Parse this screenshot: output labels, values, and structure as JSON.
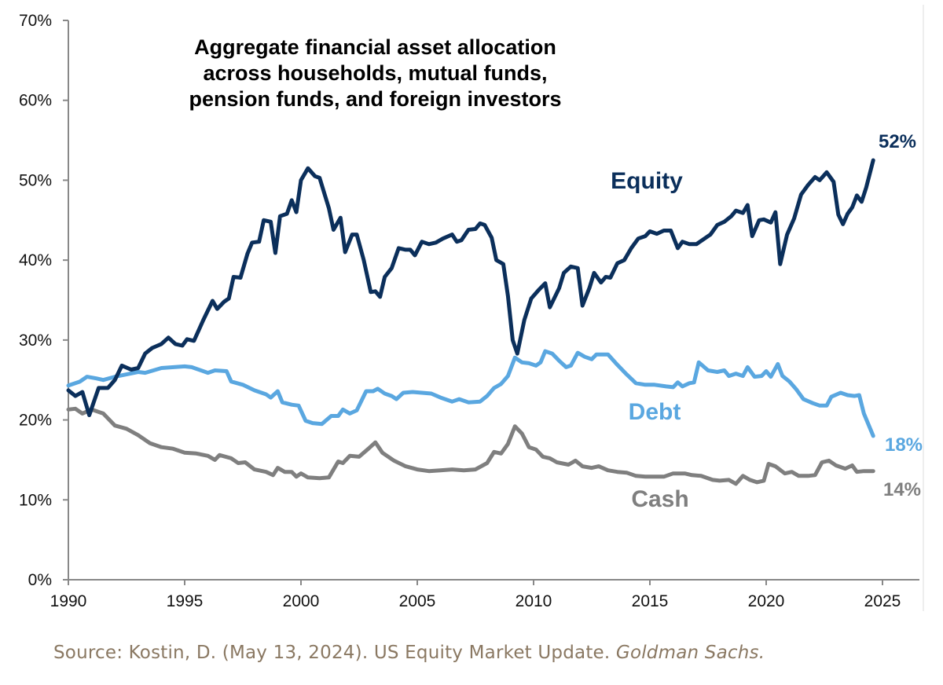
{
  "chart_data": {
    "type": "line",
    "title": "Aggregate financial asset allocation across households, mutual funds, pension funds, and foreign investors",
    "title_lines": [
      "Aggregate financial asset allocation",
      "across households, mutual funds,",
      "pension funds, and foreign investors"
    ],
    "xlabel": "",
    "ylabel": "",
    "xlim": [
      1990,
      2027
    ],
    "ylim": [
      0,
      70
    ],
    "x_ticks": [
      "1990",
      "1995",
      "2000",
      "2005",
      "2010",
      "2015",
      "2020",
      "2025"
    ],
    "y_ticks": [
      "0%",
      "10%",
      "20%",
      "30%",
      "40%",
      "50%",
      "60%",
      "70%"
    ],
    "grid": false,
    "series": [
      {
        "name": "Equity",
        "color": "#0b2f5b",
        "end_label": "52%",
        "x": [
          1990.0,
          1990.3,
          1990.6,
          1990.9,
          1991.3,
          1991.7,
          1992.0,
          1992.3,
          1992.7,
          1993.0,
          1993.3,
          1993.6,
          1994.0,
          1994.3,
          1994.6,
          1994.9,
          1995.1,
          1995.4,
          1995.8,
          1996.2,
          1996.4,
          1996.7,
          1996.9,
          1997.1,
          1997.4,
          1997.7,
          1997.9,
          1998.2,
          1998.4,
          1998.7,
          1998.9,
          1999.1,
          1999.4,
          1999.6,
          1999.8,
          2000.0,
          2000.3,
          2000.6,
          2000.8,
          2001.2,
          2001.4,
          2001.7,
          2001.9,
          2002.2,
          2002.4,
          2002.7,
          2003.0,
          2003.2,
          2003.4,
          2003.6,
          2003.9,
          2004.2,
          2004.5,
          2004.7,
          2004.9,
          2005.2,
          2005.5,
          2005.8,
          2006.1,
          2006.5,
          2006.7,
          2006.9,
          2007.2,
          2007.5,
          2007.7,
          2007.9,
          2008.2,
          2008.4,
          2008.7,
          2008.9,
          2009.1,
          2009.3,
          2009.6,
          2009.9,
          2010.2,
          2010.5,
          2010.7,
          2011.1,
          2011.3,
          2011.6,
          2011.9,
          2012.1,
          2012.4,
          2012.6,
          2012.9,
          2013.1,
          2013.3,
          2013.6,
          2013.9,
          2014.2,
          2014.5,
          2014.8,
          2015.0,
          2015.3,
          2015.6,
          2015.9,
          2016.2,
          2016.4,
          2016.7,
          2017.0,
          2017.3,
          2017.6,
          2017.9,
          2018.2,
          2018.5,
          2018.7,
          2019.0,
          2019.2,
          2019.4,
          2019.7,
          2019.9,
          2020.2,
          2020.4,
          2020.6,
          2020.9,
          2021.2,
          2021.5,
          2021.8,
          2022.1,
          2022.3,
          2022.6,
          2022.9,
          2023.1,
          2023.3,
          2023.5,
          2023.7,
          2023.9,
          2024.1,
          2024.3,
          2024.6
        ],
        "values": [
          23.7,
          23.0,
          23.5,
          20.6,
          24.0,
          24.0,
          25.0,
          26.8,
          26.3,
          26.5,
          28.3,
          29.0,
          29.5,
          30.3,
          29.5,
          29.3,
          30.1,
          29.9,
          32.5,
          34.9,
          33.9,
          34.8,
          35.2,
          37.9,
          37.8,
          40.8,
          42.2,
          42.3,
          45.0,
          44.8,
          40.9,
          45.5,
          45.8,
          47.5,
          46.0,
          50.0,
          51.5,
          50.5,
          50.3,
          46.5,
          43.8,
          45.3,
          41.0,
          43.2,
          43.2,
          40.0,
          36.0,
          36.1,
          35.4,
          37.9,
          39.0,
          41.5,
          41.3,
          41.3,
          40.6,
          42.3,
          42.0,
          42.2,
          42.7,
          43.2,
          42.3,
          42.5,
          43.8,
          43.9,
          44.6,
          44.4,
          42.8,
          40.0,
          39.5,
          35.5,
          30.0,
          28.3,
          32.5,
          35.2,
          36.2,
          37.1,
          34.1,
          36.5,
          38.4,
          39.2,
          39.0,
          34.3,
          36.5,
          38.4,
          37.2,
          37.9,
          37.8,
          39.6,
          40.0,
          41.5,
          42.7,
          43.0,
          43.6,
          43.3,
          43.7,
          43.7,
          41.5,
          42.3,
          42.0,
          42.0,
          42.6,
          43.2,
          44.4,
          44.8,
          45.5,
          46.2,
          45.9,
          46.9,
          43.0,
          45.0,
          45.1,
          44.7,
          46.0,
          39.5,
          43.2,
          45.2,
          48.2,
          49.4,
          50.4,
          50.0,
          51.0,
          49.8,
          45.7,
          44.5,
          45.8,
          46.6,
          48.1,
          47.3,
          49.1,
          52.5
        ]
      },
      {
        "name": "Debt",
        "color": "#5aa7e0",
        "end_label": "18%",
        "x": [
          1990.0,
          1990.5,
          1990.8,
          1991.2,
          1991.5,
          1992.0,
          1992.5,
          1993.0,
          1993.3,
          1994.0,
          1995.0,
          1995.3,
          1996.0,
          1996.3,
          1996.8,
          1997.0,
          1997.5,
          1998.0,
          1998.5,
          1998.7,
          1999.0,
          1999.2,
          1999.6,
          1999.9,
          2000.2,
          2000.5,
          2000.9,
          2001.3,
          2001.6,
          2001.8,
          2002.1,
          2002.4,
          2002.8,
          2003.1,
          2003.3,
          2003.6,
          2003.9,
          2004.1,
          2004.4,
          2004.8,
          2005.2,
          2005.6,
          2006.0,
          2006.5,
          2006.8,
          2007.2,
          2007.7,
          2008.0,
          2008.3,
          2008.6,
          2008.9,
          2009.2,
          2009.5,
          2009.8,
          2010.1,
          2010.3,
          2010.5,
          2010.8,
          2011.1,
          2011.4,
          2011.6,
          2011.9,
          2012.2,
          2012.5,
          2012.7,
          2013.2,
          2013.6,
          2014.0,
          2014.4,
          2014.8,
          2015.2,
          2015.7,
          2016.0,
          2016.2,
          2016.4,
          2016.7,
          2016.9,
          2017.1,
          2017.5,
          2017.9,
          2018.2,
          2018.4,
          2018.7,
          2019.0,
          2019.2,
          2019.5,
          2019.8,
          2020.0,
          2020.2,
          2020.5,
          2020.7,
          2021.0,
          2021.3,
          2021.6,
          2022.0,
          2022.3,
          2022.6,
          2022.8,
          2023.2,
          2023.5,
          2023.8,
          2024.0,
          2024.2,
          2024.6
        ],
        "values": [
          24.3,
          24.8,
          25.4,
          25.2,
          25.0,
          25.4,
          25.7,
          26.0,
          25.9,
          26.5,
          26.7,
          26.6,
          25.9,
          26.2,
          26.1,
          24.8,
          24.4,
          23.7,
          23.2,
          22.8,
          23.6,
          22.2,
          21.9,
          21.8,
          19.9,
          19.6,
          19.5,
          20.5,
          20.5,
          21.3,
          20.8,
          21.2,
          23.6,
          23.6,
          23.9,
          23.3,
          23.0,
          22.6,
          23.4,
          23.5,
          23.4,
          23.3,
          22.8,
          22.3,
          22.6,
          22.2,
          22.3,
          23.0,
          24.0,
          24.5,
          25.5,
          27.8,
          27.2,
          27.1,
          26.8,
          27.2,
          28.6,
          28.3,
          27.4,
          26.6,
          26.8,
          28.4,
          27.9,
          27.6,
          28.2,
          28.2,
          26.9,
          25.7,
          24.6,
          24.4,
          24.4,
          24.2,
          24.1,
          24.7,
          24.2,
          24.6,
          24.7,
          27.2,
          26.2,
          26.0,
          26.2,
          25.5,
          25.8,
          25.5,
          26.6,
          25.4,
          25.5,
          26.1,
          25.4,
          27.0,
          25.5,
          24.8,
          23.8,
          22.6,
          22.1,
          21.8,
          21.8,
          22.9,
          23.4,
          23.1,
          23.0,
          23.1,
          20.8,
          18.0
        ]
      },
      {
        "name": "Cash",
        "color": "#7f7f7f",
        "end_label": "14%",
        "x": [
          1990.0,
          1990.3,
          1990.6,
          1991.0,
          1991.5,
          1992.0,
          1992.5,
          1993.0,
          1993.5,
          1994.0,
          1994.5,
          1995.0,
          1995.5,
          1996.0,
          1996.3,
          1996.5,
          1997.0,
          1997.3,
          1997.6,
          1998.0,
          1998.5,
          1998.8,
          1999.0,
          1999.3,
          1999.6,
          1999.8,
          2000.0,
          2000.3,
          2000.8,
          2001.2,
          2001.6,
          2001.8,
          2002.1,
          2002.5,
          2002.9,
          2003.2,
          2003.5,
          2004.0,
          2004.5,
          2005.0,
          2005.5,
          2006.0,
          2006.5,
          2007.0,
          2007.5,
          2008.0,
          2008.3,
          2008.6,
          2008.9,
          2009.2,
          2009.5,
          2009.8,
          2010.1,
          2010.4,
          2010.7,
          2011.0,
          2011.5,
          2011.8,
          2012.1,
          2012.5,
          2012.8,
          2013.2,
          2013.6,
          2014.0,
          2014.4,
          2014.8,
          2015.2,
          2015.6,
          2016.0,
          2016.5,
          2016.8,
          2017.2,
          2017.7,
          2018.0,
          2018.4,
          2018.7,
          2019.0,
          2019.3,
          2019.6,
          2019.9,
          2020.1,
          2020.4,
          2020.8,
          2021.1,
          2021.4,
          2021.8,
          2022.1,
          2022.4,
          2022.7,
          2023.0,
          2023.4,
          2023.7,
          2023.9,
          2024.2,
          2024.6
        ],
        "values": [
          21.3,
          21.4,
          20.8,
          21.3,
          20.8,
          19.3,
          18.9,
          18.1,
          17.1,
          16.6,
          16.4,
          15.9,
          15.8,
          15.5,
          15.0,
          15.6,
          15.2,
          14.6,
          14.7,
          13.8,
          13.5,
          13.1,
          14.0,
          13.5,
          13.5,
          12.9,
          13.3,
          12.8,
          12.7,
          12.8,
          14.8,
          14.6,
          15.5,
          15.4,
          16.4,
          17.2,
          15.9,
          14.9,
          14.2,
          13.8,
          13.6,
          13.7,
          13.8,
          13.7,
          13.8,
          14.6,
          16.0,
          15.8,
          17.0,
          19.2,
          18.3,
          16.6,
          16.3,
          15.4,
          15.2,
          14.7,
          14.4,
          14.9,
          14.2,
          14.0,
          14.2,
          13.7,
          13.5,
          13.4,
          13.0,
          12.9,
          12.9,
          12.9,
          13.3,
          13.3,
          13.1,
          13.0,
          12.5,
          12.4,
          12.5,
          12.0,
          13.0,
          12.5,
          12.2,
          12.4,
          14.5,
          14.2,
          13.3,
          13.5,
          13.0,
          13.0,
          13.1,
          14.7,
          14.9,
          14.3,
          13.9,
          14.3,
          13.5,
          13.6,
          13.6
        ]
      }
    ]
  },
  "source": {
    "text": "Source: Kostin, D. (May 13, 2024). US Equity Market Update. ",
    "publisher": "Goldman Sachs."
  }
}
